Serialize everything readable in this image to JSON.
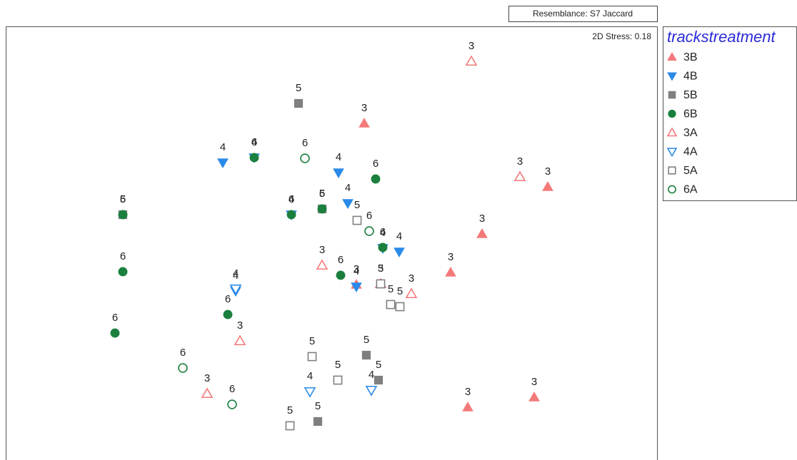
{
  "chart_data": {
    "type": "scatter",
    "resemblance": "Resemblance: S7 Jaccard",
    "stress": "2D Stress: 0.18",
    "legend_title": "trackstreatment",
    "legend": "right",
    "xlim": [
      0,
      912
    ],
    "ylim": [
      0,
      608
    ],
    "series": [
      {
        "name": "3B",
        "point_label": "3",
        "color": "#f47a7a",
        "marker": "triangle-up",
        "filled": true,
        "x": [
          502,
          759,
          667,
          623,
          647,
          740,
          491
        ],
        "values": [
          472,
          383,
          317,
          263,
          74,
          88,
          246
        ]
      },
      {
        "name": "4B",
        "point_label": "4",
        "color": "#2a8ae8",
        "marker": "triangle-down",
        "filled": true,
        "x": [
          304,
          466,
          479,
          528,
          551,
          491,
          322,
          348,
          400
        ],
        "values": [
          417,
          403,
          360,
          297,
          292,
          243,
          237,
          424,
          344
        ]
      },
      {
        "name": "5B",
        "point_label": "5",
        "color": "#7f7f7f",
        "marker": "square",
        "filled": true,
        "x": [
          410,
          505,
          522,
          437,
          164,
          443
        ],
        "values": [
          500,
          147,
          112,
          54,
          344,
          352
        ]
      },
      {
        "name": "6B",
        "point_label": "6",
        "color": "#1b7f3e",
        "marker": "circle",
        "filled": true,
        "x": [
          518,
          164,
          164,
          311,
          153,
          443,
          400,
          348,
          469,
          528
        ],
        "values": [
          394,
          344,
          264,
          204,
          178,
          352,
          344,
          424,
          259,
          298
        ]
      },
      {
        "name": "3A",
        "point_label": "3",
        "color": "#f47a7a",
        "marker": "triangle-up",
        "filled": false,
        "x": [
          652,
          720,
          443,
          568,
          328,
          282,
          525
        ],
        "values": [
          559,
          397,
          273,
          233,
          167,
          93,
          247
        ]
      },
      {
        "name": "4A",
        "point_label": "4",
        "color": "#2a8ae8",
        "marker": "triangle-down",
        "filled": false,
        "x": [
          426,
          512,
          322
        ],
        "values": [
          96,
          98,
          240
        ]
      },
      {
        "name": "5A",
        "point_label": "5",
        "color": "#7f7f7f",
        "marker": "square",
        "filled": false,
        "x": [
          492,
          539,
          552,
          429,
          465,
          398,
          525
        ],
        "values": [
          336,
          218,
          215,
          145,
          112,
          48,
          247
        ]
      },
      {
        "name": "6A",
        "point_label": "6",
        "color": "#1b7f3e",
        "marker": "circle",
        "filled": false,
        "x": [
          419,
          509,
          248,
          317
        ],
        "values": [
          423,
          321,
          129,
          78
        ]
      }
    ]
  }
}
